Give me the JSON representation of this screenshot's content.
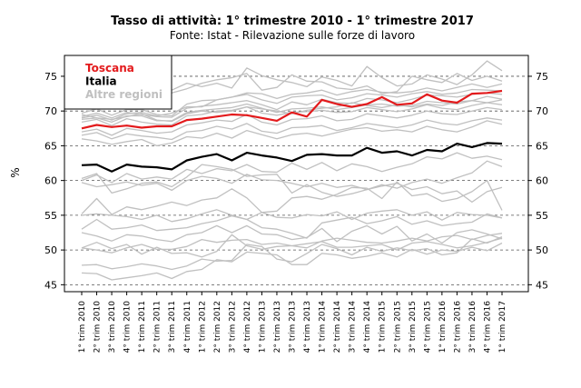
{
  "chart_data": {
    "type": "line",
    "title": "Tasso di attività: 1° trimestre 2010 - 1° trimestre 2017",
    "subtitle": "Fonte: Istat - Rilevazione sulle forze di lavoro",
    "ylabel": "%",
    "ylim": [
      44,
      78
    ],
    "yticks": [
      45,
      50,
      55,
      60,
      65,
      70,
      75
    ],
    "grid": "horizontal dashed",
    "legend_position": "top-left",
    "categories": [
      "1° trim 2010",
      "2° trim 2010",
      "3° trim 2010",
      "4° trim 2010",
      "1° trim 2011",
      "2° trim 2011",
      "3° trim 2011",
      "4° trim 2011",
      "1° trim 2012",
      "2° trim 2012",
      "3° trim 2012",
      "4° trim 2012",
      "1° trim 2013",
      "2° trim 2013",
      "3° trim 2013",
      "4° trim 2013",
      "1° trim 2014",
      "2° trim 2014",
      "3° trim 2014",
      "4° trim 2014",
      "1° trim 2015",
      "2° trim 2015",
      "3° trim 2015",
      "4° trim 2015",
      "1° trim 2016",
      "2° trim 2016",
      "3° trim 2016",
      "4° trim 2016",
      "1° trim 2017"
    ],
    "series": [
      {
        "name": "Toscana",
        "color": "#e31a1c",
        "width": 2.2,
        "values": [
          67.5,
          68.0,
          67.7,
          67.9,
          67.6,
          67.8,
          67.8,
          68.7,
          68.9,
          69.2,
          69.5,
          69.4,
          69.0,
          68.6,
          69.8,
          69.2,
          71.6,
          71.0,
          70.6,
          71.0,
          72.0,
          70.9,
          71.1,
          72.4,
          71.5,
          71.2,
          72.5,
          72.6,
          72.9
        ]
      },
      {
        "name": "Italia",
        "color": "#000000",
        "width": 2.2,
        "values": [
          62.2,
          62.3,
          61.3,
          62.3,
          62.0,
          61.9,
          61.6,
          62.9,
          63.4,
          63.8,
          62.9,
          64.0,
          63.6,
          63.3,
          62.8,
          63.7,
          63.8,
          63.6,
          63.6,
          64.7,
          64.0,
          64.2,
          63.6,
          64.4,
          64.2,
          65.3,
          64.8,
          65.4,
          65.3
        ]
      },
      {
        "name": "Altre regioni",
        "color": "#c0c0c0",
        "width": 1.3,
        "values": [
          69.2,
          69.7,
          69.0,
          69.8,
          69.5,
          69.2,
          69.1,
          70.4,
          70.7,
          70.9,
          71.2,
          71.5,
          70.9,
          70.2,
          71.3,
          70.9,
          71.7,
          71.2,
          71.1,
          71.8,
          71.6,
          71.2,
          71.7,
          72.3,
          72.2,
          72.0,
          72.4,
          72.6,
          72.4
        ]
      },
      {
        "name": "",
        "color": "#c0c0c0",
        "width": 1.3,
        "values": [
          69.0,
          69.4,
          68.7,
          69.6,
          69.8,
          69.3,
          69.7,
          70.6,
          70.6,
          71.6,
          72.0,
          72.6,
          72.5,
          71.8,
          72.4,
          72.6,
          73.0,
          72.3,
          72.8,
          73.1,
          72.7,
          72.6,
          72.8,
          73.3,
          72.9,
          73.4,
          73.9,
          73.4,
          73.9
        ]
      },
      {
        "name": "",
        "color": "#c0c0c0",
        "width": 1.3,
        "values": [
          68.8,
          69.0,
          68.4,
          69.3,
          69.3,
          68.6,
          68.6,
          69.8,
          70.1,
          70.3,
          70.5,
          71.0,
          70.4,
          69.8,
          70.3,
          70.4,
          70.6,
          70.2,
          70.5,
          70.9,
          71.0,
          70.7,
          70.8,
          71.4,
          71.2,
          71.0,
          71.5,
          72.1,
          71.7
        ]
      },
      {
        "name": "",
        "color": "#c0c0c0",
        "width": 1.3,
        "values": [
          69.7,
          70.3,
          69.4,
          70.2,
          70.2,
          69.5,
          69.3,
          71.0,
          71.5,
          71.6,
          72.0,
          72.4,
          71.6,
          71.1,
          72.0,
          72.2,
          72.3,
          71.6,
          71.9,
          72.5,
          72.3,
          72.0,
          72.5,
          72.8,
          72.4,
          72.6,
          73.1,
          73.0,
          72.9
        ]
      },
      {
        "name": "",
        "color": "#c0c0c0",
        "width": 1.3,
        "values": [
          68.4,
          68.8,
          67.9,
          68.9,
          68.4,
          68.1,
          68.0,
          69.3,
          69.5,
          70.0,
          70.1,
          70.6,
          69.7,
          69.4,
          69.8,
          69.9,
          70.1,
          69.8,
          69.9,
          70.5,
          70.2,
          69.9,
          70.3,
          70.9,
          70.4,
          70.2,
          70.8,
          71.2,
          70.9
        ]
      },
      {
        "name": "",
        "color": "#c0c0c0",
        "width": 1.3,
        "values": [
          67.0,
          67.4,
          66.5,
          67.5,
          67.2,
          66.8,
          67.0,
          68.0,
          68.3,
          68.7,
          68.5,
          69.5,
          68.4,
          68.0,
          68.8,
          68.9,
          69.3,
          68.6,
          68.8,
          69.6,
          69.3,
          69.0,
          69.4,
          70.0,
          69.6,
          69.5,
          70.0,
          70.5,
          70.2
        ]
      },
      {
        "name": "",
        "color": "#c0c0c0",
        "width": 1.3,
        "values": [
          66.5,
          66.9,
          66.0,
          66.7,
          66.4,
          66.2,
          65.9,
          67.0,
          67.2,
          67.8,
          67.4,
          68.2,
          67.1,
          66.8,
          67.6,
          67.7,
          67.9,
          67.2,
          67.6,
          68.2,
          67.9,
          67.6,
          68.0,
          68.7,
          68.2,
          68.0,
          68.6,
          69.0,
          68.7
        ]
      },
      {
        "name": "",
        "color": "#c0c0c0",
        "width": 1.3,
        "values": [
          73.4,
          73.9,
          73.0,
          74.1,
          73.7,
          73.2,
          73.0,
          74.0,
          73.5,
          74.0,
          73.3,
          76.2,
          75.1,
          74.5,
          74.1,
          73.5,
          74.9,
          74.4,
          73.6,
          76.4,
          74.8,
          73.6,
          73.9,
          75.2,
          74.6,
          73.8,
          75.2,
          77.2,
          75.8
        ]
      },
      {
        "name": "",
        "color": "#c0c0c0",
        "width": 1.3,
        "values": [
          71.8,
          71.6,
          72.2,
          72.0,
          71.8,
          72.4,
          72.6,
          73.2,
          74.0,
          74.5,
          74.8,
          75.4,
          73.0,
          73.4,
          75.2,
          74.3,
          74.2,
          73.3,
          73.1,
          73.6,
          72.5,
          72.8,
          75.0,
          74.5,
          74.1,
          75.4,
          74.4,
          75.0,
          74.3
        ]
      },
      {
        "name": "",
        "color": "#c0c0c0",
        "width": 1.3,
        "values": [
          69.5,
          69.0,
          68.8,
          69.2,
          69.6,
          68.7,
          68.5,
          69.6,
          70.0,
          69.8,
          70.0,
          70.6,
          70.3,
          70.0,
          69.6,
          70.1,
          70.4,
          70.6,
          71.2,
          70.8,
          70.5,
          70.9,
          70.6,
          71.0,
          70.8,
          71.3,
          71.5,
          71.2,
          71.6
        ]
      },
      {
        "name": "",
        "color": "#c0c0c0",
        "width": 1.3,
        "values": [
          66.0,
          65.7,
          65.2,
          65.6,
          65.9,
          65.0,
          65.4,
          66.3,
          66.1,
          66.8,
          66.1,
          67.2,
          66.6,
          66.0,
          66.6,
          66.8,
          66.4,
          66.9,
          67.4,
          67.6,
          67.1,
          67.3,
          67.0,
          67.8,
          67.3,
          67.0,
          67.7,
          68.6,
          68.1
        ]
      },
      {
        "name": "",
        "color": "#c0c0c0",
        "width": 1.3,
        "values": [
          60.0,
          60.8,
          59.7,
          61.0,
          60.2,
          60.5,
          60.2,
          61.6,
          61.0,
          61.7,
          61.4,
          62.3,
          61.3,
          61.2,
          62.5,
          61.6,
          62.6,
          61.4,
          62.4,
          62.0,
          61.3,
          61.9,
          62.4,
          63.4,
          63.1,
          64.0,
          63.2,
          63.5,
          63.0
        ]
      },
      {
        "name": "",
        "color": "#c0c0c0",
        "width": 1.3,
        "values": [
          59.7,
          59.1,
          59.4,
          59.8,
          59.3,
          59.6,
          58.6,
          60.0,
          60.6,
          60.3,
          59.6,
          60.9,
          60.1,
          60.0,
          59.6,
          59.1,
          59.6,
          59.0,
          59.3,
          58.7,
          59.4,
          58.9,
          59.7,
          60.2,
          59.6,
          60.4,
          61.1,
          62.8,
          62.0
        ]
      },
      {
        "name": "",
        "color": "#c0c0c0",
        "width": 1.3,
        "values": [
          60.3,
          61.0,
          58.2,
          58.8,
          59.6,
          59.8,
          59.1,
          60.5,
          62.3,
          62.0,
          61.6,
          60.6,
          60.8,
          60.9,
          58.2,
          59.4,
          58.3,
          57.7,
          58.1,
          58.7,
          59.2,
          59.6,
          58.7,
          59.1,
          58.1,
          58.5,
          56.9,
          58.4,
          59.0
        ]
      },
      {
        "name": "",
        "color": "#c0c0c0",
        "width": 1.3,
        "values": [
          55.2,
          57.4,
          55.1,
          56.2,
          55.8,
          56.3,
          56.9,
          56.4,
          57.2,
          57.5,
          58.8,
          57.5,
          55.4,
          55.6,
          57.5,
          57.7,
          57.3,
          58.0,
          59.0,
          58.9,
          57.4,
          59.8,
          57.8,
          58.1,
          57.0,
          57.4,
          58.4,
          60.0,
          55.7
        ]
      },
      {
        "name": "",
        "color": "#c0c0c0",
        "width": 1.3,
        "values": [
          55.0,
          55.2,
          55.0,
          54.8,
          54.4,
          55.0,
          54.1,
          54.5,
          55.2,
          55.8,
          55.0,
          54.4,
          55.4,
          54.7,
          54.6,
          55.1,
          54.9,
          55.5,
          54.4,
          55.3,
          55.6,
          55.8,
          55.0,
          55.5,
          54.3,
          55.4,
          55.1,
          55.0,
          54.6
        ]
      },
      {
        "name": "",
        "color": "#c0c0c0",
        "width": 1.3,
        "values": [
          53.0,
          54.4,
          53.0,
          53.2,
          53.6,
          52.8,
          53.0,
          53.2,
          53.8,
          54.2,
          54.9,
          54.4,
          53.2,
          53.0,
          52.4,
          51.7,
          53.9,
          54.3,
          54.7,
          53.8,
          54.2,
          54.8,
          53.7,
          54.2,
          53.5,
          53.8,
          54.0,
          55.2,
          54.6
        ]
      },
      {
        "name": "",
        "color": "#c0c0c0",
        "width": 1.3,
        "values": [
          52.5,
          52.0,
          51.3,
          52.2,
          52.0,
          51.5,
          51.2,
          52.2,
          52.5,
          53.5,
          52.5,
          53.5,
          52.3,
          52.2,
          51.5,
          51.8,
          53.1,
          51.2,
          52.7,
          53.5,
          52.3,
          53.4,
          51.3,
          52.3,
          51.0,
          52.5,
          52.9,
          52.3,
          51.6
        ]
      },
      {
        "name": "",
        "color": "#c0c0c0",
        "width": 1.3,
        "values": [
          50.3,
          50.0,
          49.6,
          50.3,
          50.8,
          50.1,
          50.1,
          50.5,
          51.5,
          51.1,
          51.4,
          51.5,
          50.8,
          51.0,
          50.6,
          50.3,
          51.3,
          51.7,
          51.4,
          51.1,
          51.0,
          51.3,
          51.7,
          51.3,
          51.9,
          52.1,
          51.5,
          52.1,
          52.4
        ]
      },
      {
        "name": "",
        "color": "#c0c0c0",
        "width": 1.3,
        "values": [
          50.3,
          51.1,
          50.2,
          50.8,
          49.4,
          50.4,
          49.5,
          49.6,
          49.0,
          49.8,
          52.2,
          50.6,
          50.1,
          50.5,
          50.6,
          50.9,
          51.2,
          50.4,
          50.4,
          50.6,
          50.8,
          50.0,
          51.0,
          51.2,
          50.8,
          50.3,
          50.6,
          51.1,
          51.7
        ]
      },
      {
        "name": "",
        "color": "#c0c0c0",
        "width": 1.3,
        "values": [
          47.8,
          47.9,
          47.3,
          47.6,
          48.0,
          47.7,
          47.2,
          47.7,
          48.7,
          48.4,
          48.5,
          50.8,
          50.5,
          48.7,
          48.3,
          49.5,
          50.8,
          50.2,
          49.3,
          50.4,
          49.8,
          50.3,
          49.9,
          50.2,
          49.3,
          49.6,
          51.6,
          51.0,
          51.9
        ]
      },
      {
        "name": "",
        "color": "#c0c0c0",
        "width": 1.3,
        "values": [
          46.7,
          46.6,
          45.7,
          46.0,
          46.3,
          46.7,
          45.9,
          46.9,
          47.2,
          48.6,
          48.3,
          49.7,
          49.5,
          49.3,
          47.9,
          47.9,
          49.5,
          49.3,
          48.8,
          49.1,
          49.6,
          49.0,
          50.1,
          49.4,
          50.0,
          49.8,
          50.4,
          49.9,
          51.0
        ]
      }
    ]
  }
}
